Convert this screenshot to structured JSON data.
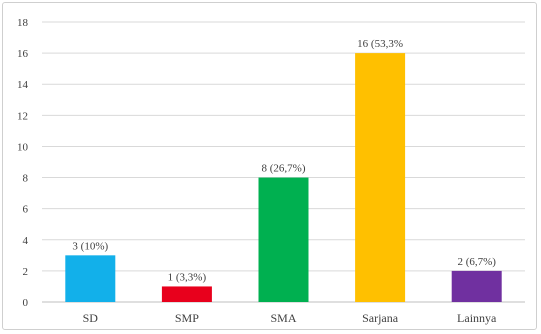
{
  "chart_data": {
    "type": "bar",
    "categories": [
      "SD",
      "SMP",
      "SMA",
      "Sarjana",
      "Lainnya"
    ],
    "values": [
      3,
      1,
      8,
      16,
      2
    ],
    "data_labels": [
      "3 (10%)",
      "1 (3,3%)",
      "8 (26,7%)",
      "16 (53,3%",
      "2 (6,7%)"
    ],
    "colors": [
      "#12b0ea",
      "#e8001c",
      "#00b050",
      "#ffc000",
      "#7030a0"
    ],
    "yticks": [
      0,
      2,
      4,
      6,
      8,
      10,
      12,
      14,
      16,
      18
    ],
    "ylim": [
      0,
      18
    ],
    "grid": "horizontal",
    "legend": "none"
  }
}
